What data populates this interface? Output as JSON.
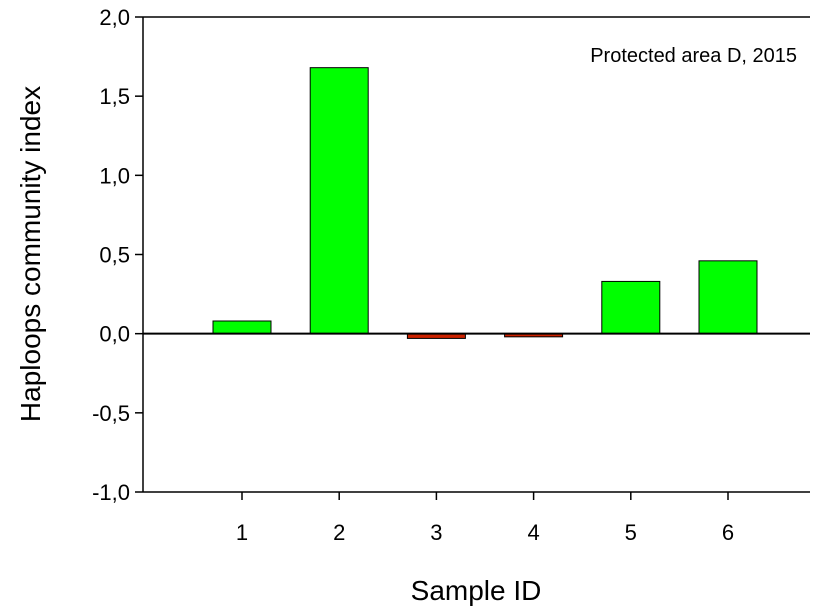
{
  "chart_data": {
    "type": "bar",
    "annotation": "Protected area D, 2015",
    "xlabel": "Sample ID",
    "ylabel": "Haploops community index",
    "categories": [
      "1",
      "2",
      "3",
      "4",
      "5",
      "6"
    ],
    "values": [
      0.08,
      1.68,
      -0.03,
      -0.02,
      0.33,
      0.46
    ],
    "ylim": [
      -1.0,
      2.0
    ],
    "yticks": [
      {
        "value": 2.0,
        "label": "2,0"
      },
      {
        "value": 1.5,
        "label": "1,5"
      },
      {
        "value": 1.0,
        "label": "1,0"
      },
      {
        "value": 0.5,
        "label": "0,5"
      },
      {
        "value": 0.0,
        "label": "0,0"
      },
      {
        "value": -0.5,
        "label": "-0,5"
      },
      {
        "value": -1.0,
        "label": "-1,0"
      }
    ],
    "grid": false,
    "colors": {
      "positive": "#00ff00",
      "negative": "#cc2200",
      "stroke": "#000000"
    }
  }
}
